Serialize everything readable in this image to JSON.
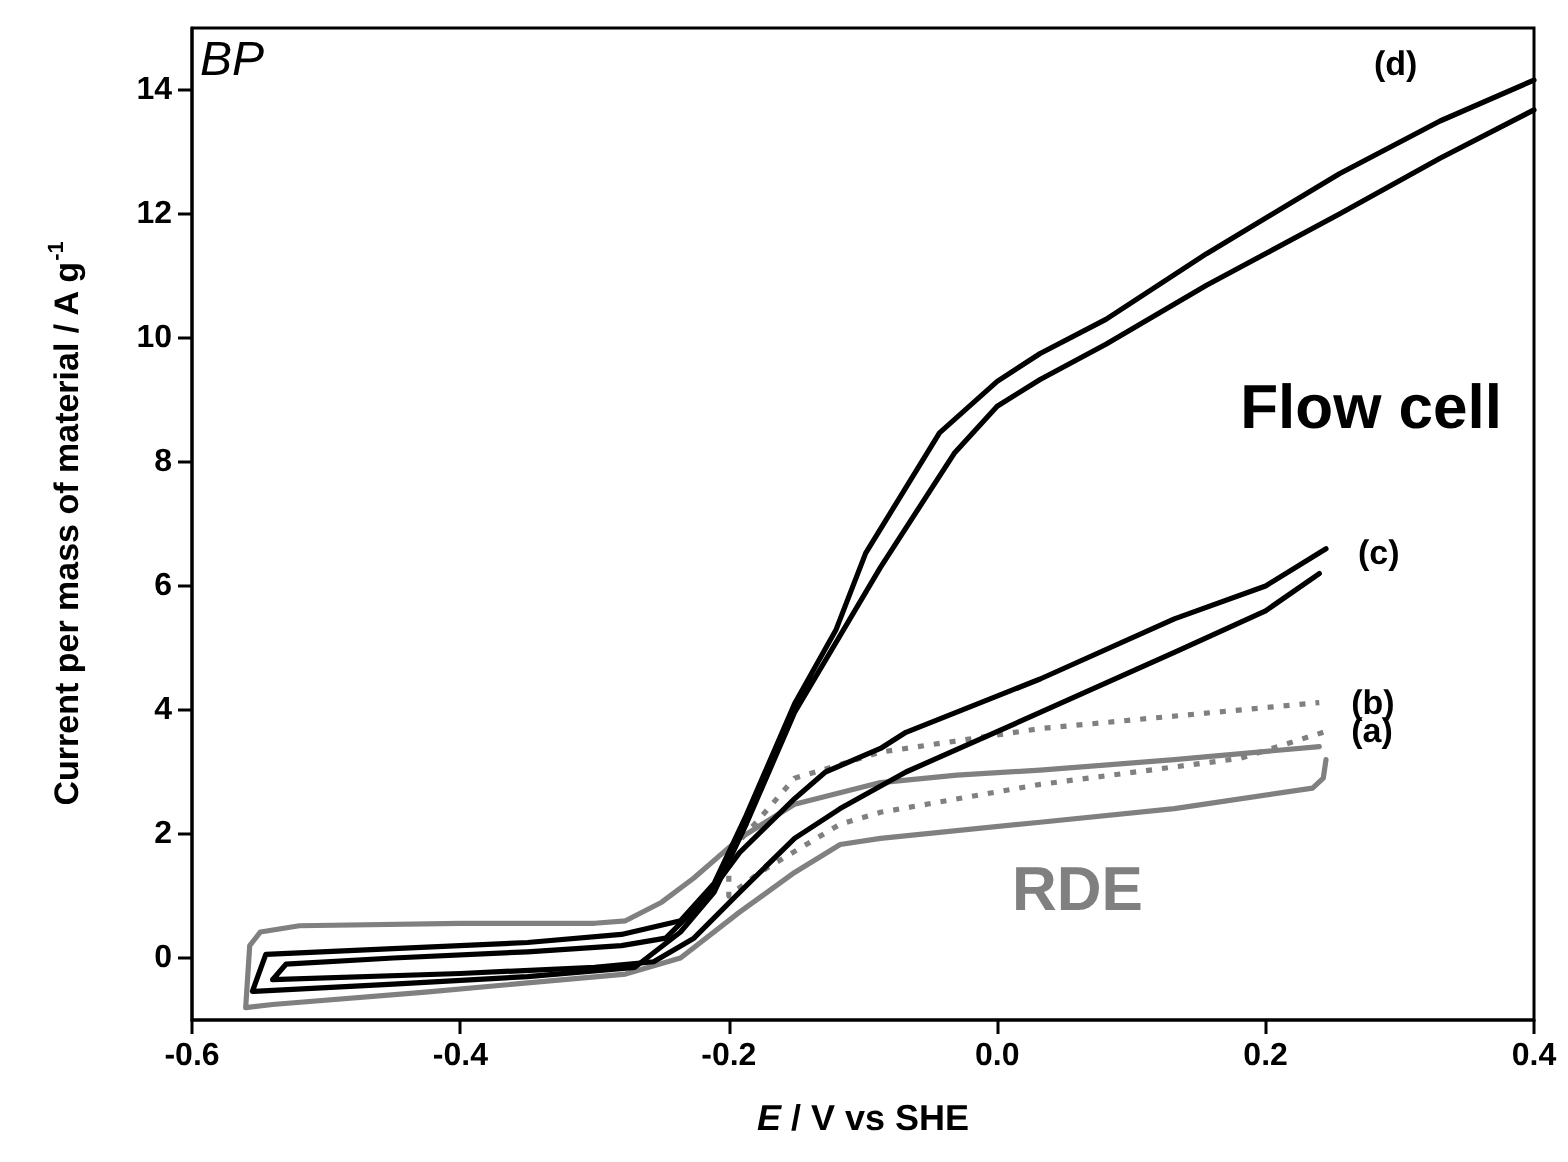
{
  "chart_data": {
    "type": "line",
    "xlabel": "E / V vs SHE",
    "ylabel": "Current per mass of material / A g$^{-1}$",
    "xlim": [
      -0.6,
      0.4
    ],
    "xticks": [
      -0.6,
      -0.4,
      -0.2,
      {
        "value": 0,
        "label": "0.0"
      },
      0.2,
      0.4
    ],
    "ylim": [
      -1,
      15
    ],
    "yticks": [
      0,
      2,
      4,
      6,
      8,
      10,
      12,
      14
    ],
    "marker": "none",
    "annotations": [
      "BP",
      "Flow cell",
      "RDE"
    ],
    "series": [
      {
        "name": "(a)",
        "color": "#808080",
        "line_style": "solid",
        "x": [
          0.245,
          0.243,
          0.235,
          0.132,
          0.032,
          -0.087,
          -0.117,
          -0.151,
          -0.192,
          -0.236,
          -0.277,
          -0.426,
          -0.54,
          -0.56,
          -0.557,
          -0.549,
          -0.52,
          -0.4,
          -0.3,
          -0.277,
          -0.25,
          -0.226,
          -0.192,
          -0.151,
          -0.087,
          -0.03,
          0.032,
          0.132,
          0.24
        ],
        "values": [
          3.2,
          2.9,
          2.74,
          2.41,
          2.19,
          1.93,
          1.83,
          1.38,
          0.74,
          0,
          -0.26,
          -0.55,
          -0.75,
          -0.8,
          0.2,
          0.42,
          0.52,
          0.56,
          0.56,
          0.6,
          0.9,
          1.29,
          1.93,
          2.48,
          2.83,
          2.95,
          3.03,
          3.2,
          3.41
        ]
      },
      {
        "name": "(b)",
        "color": "#808080",
        "line_style": "dotted",
        "x": [
          0.243,
          0.181,
          0.032,
          -0.087,
          -0.117,
          -0.177,
          -0.2,
          -0.2,
          -0.177,
          -0.151,
          -0.117,
          -0.087,
          0.032,
          0.24
        ],
        "values": [
          3.64,
          3.22,
          2.8,
          2.35,
          2.16,
          1.38,
          1.0,
          1.7,
          2.25,
          2.9,
          3.12,
          3.32,
          3.7,
          4.12
        ]
      },
      {
        "name": "(c)",
        "color": "#000000",
        "line_style": "solid",
        "x": [
          0.24,
          0.2,
          0.132,
          0.032,
          -0.068,
          -0.117,
          -0.151,
          -0.192,
          -0.226,
          -0.256,
          -0.3,
          -0.4,
          -0.54,
          -0.53,
          -0.45,
          -0.35,
          -0.28,
          -0.247,
          -0.217,
          -0.192,
          -0.151,
          -0.128,
          -0.087,
          -0.068,
          0.032,
          0.132,
          0.2,
          0.245
        ],
        "values": [
          6.2,
          5.6,
          4.93,
          3.96,
          3.0,
          2.41,
          1.93,
          1.06,
          0.32,
          -0.06,
          -0.15,
          -0.25,
          -0.35,
          -0.1,
          0,
          0.1,
          0.2,
          0.32,
          0.97,
          1.7,
          2.57,
          3.0,
          3.38,
          3.64,
          4.5,
          5.47,
          6.0,
          6.6
        ]
      },
      {
        "name": "(d)",
        "color": "#000000",
        "line_style": "solid",
        "x": [
          0.4,
          0.33,
          0.255,
          0.156,
          0.081,
          0.032,
          0,
          -0.032,
          -0.087,
          -0.151,
          -0.187,
          -0.211,
          -0.236,
          -0.27,
          -0.35,
          -0.45,
          -0.555,
          -0.545,
          -0.45,
          -0.35,
          -0.28,
          -0.236,
          -0.211,
          -0.187,
          -0.151,
          -0.12,
          -0.098,
          -0.043,
          0,
          0.032,
          0.081,
          0.156,
          0.255,
          0.33,
          0.4
        ],
        "values": [
          13.68,
          12.9,
          12.0,
          10.85,
          9.9,
          9.33,
          8.9,
          8.14,
          6.3,
          3.96,
          2.16,
          1.06,
          0.42,
          -0.15,
          -0.3,
          -0.42,
          -0.54,
          0.06,
          0.15,
          0.25,
          0.38,
          0.6,
          1.2,
          2.3,
          4.1,
          5.3,
          6.53,
          8.47,
          9.3,
          9.75,
          10.3,
          11.36,
          12.65,
          13.5,
          14.16
        ]
      }
    ]
  }
}
